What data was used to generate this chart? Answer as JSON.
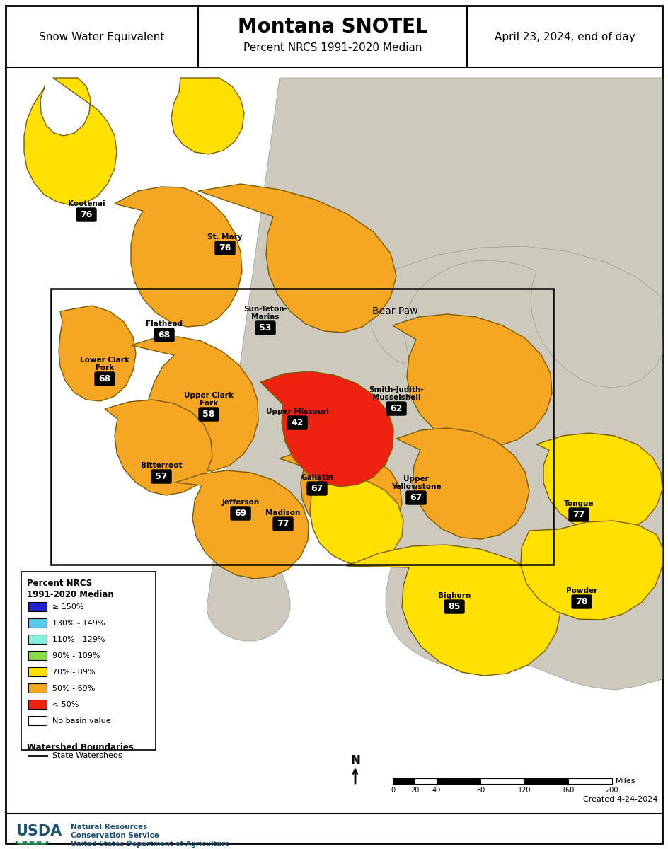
{
  "title": "Montana SNOTEL",
  "subtitle": "Percent NRCS 1991-2020 Median",
  "left_header": "Snow Water Equivalent",
  "right_header": "April 23, 2024, end of day",
  "created": "Created 4-24-2024",
  "legend_title1": "Percent NRCS",
  "legend_title2": "1991-2020 Median",
  "legend_items": [
    [
      "≥ 150%",
      "#2222CC"
    ],
    [
      "130% - 149%",
      "#55CCEE"
    ],
    [
      "110% - 129%",
      "#88EEE0"
    ],
    [
      "90% - 109%",
      "#88DD44"
    ],
    [
      "70% - 89%",
      "#FFE000"
    ],
    [
      "50% - 69%",
      "#F5A623"
    ],
    [
      "< 50%",
      "#EE2211"
    ],
    [
      "No basin value",
      "#FFFFFF"
    ]
  ],
  "bg_color": "#FFFFFF",
  "eastern_bg_color": "#CDC9BC",
  "outer_border": "#000000",
  "inner_border": "#000000",
  "watershed_border": "#7A5C00",
  "no_data_border": "#999990"
}
